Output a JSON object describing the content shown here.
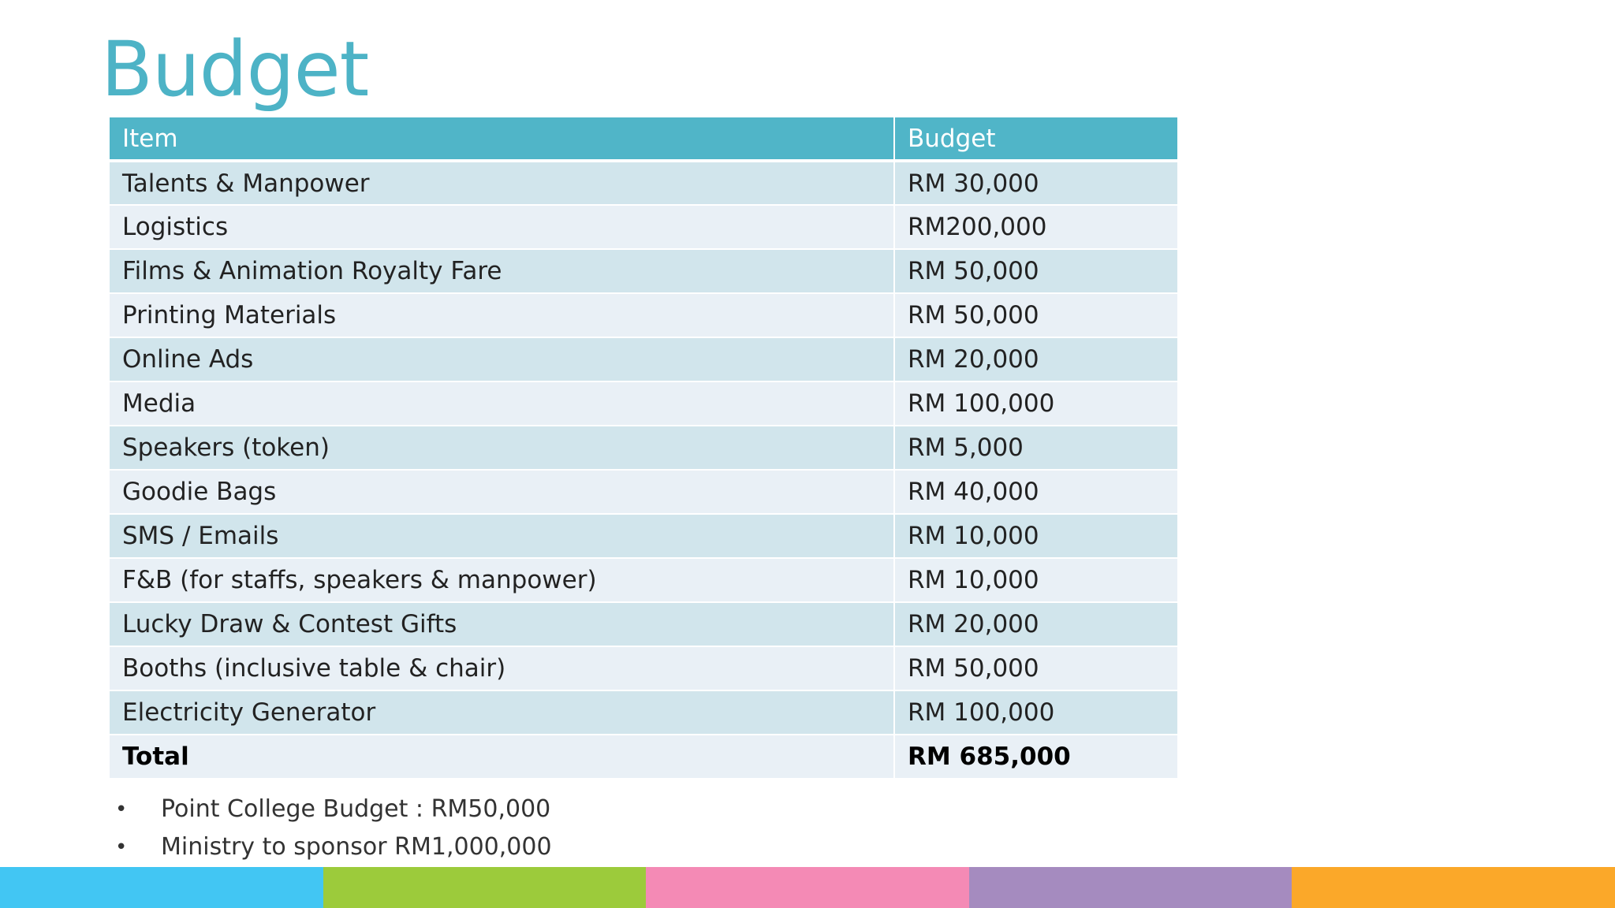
{
  "slide": {
    "title": "Budget"
  },
  "table": {
    "headers": [
      "Item",
      "Budget"
    ],
    "rows": [
      {
        "item": "Talents & Manpower",
        "budget": "RM 30,000"
      },
      {
        "item": "Logistics",
        "budget": "RM200,000"
      },
      {
        "item": "Films & Animation Royalty Fare",
        "budget": "RM 50,000"
      },
      {
        "item": "Printing Materials",
        "budget": "RM 50,000"
      },
      {
        "item": "Online Ads",
        "budget": "RM 20,000"
      },
      {
        "item": "Media",
        "budget": "RM 100,000"
      },
      {
        "item": "Speakers (token)",
        "budget": "RM 5,000"
      },
      {
        "item": "Goodie Bags",
        "budget": "RM 40,000"
      },
      {
        "item": "SMS / Emails",
        "budget": "RM 10,000"
      },
      {
        "item": "F&B (for staffs, speakers & manpower)",
        "budget": "RM 10,000"
      },
      {
        "item": "Lucky Draw & Contest Gifts",
        "budget": "RM 20,000"
      },
      {
        "item": "Booths (inclusive table & chair)",
        "budget": "RM 50,000"
      },
      {
        "item": "Electricity Generator",
        "budget": "RM 100,000"
      }
    ],
    "total": {
      "item": "Total",
      "budget": "RM 685,000"
    }
  },
  "notes": [
    "Point College Budget : RM50,000",
    "Ministry to sponsor RM1,000,000"
  ],
  "bullet_glyph": "•",
  "colors": {
    "title": "#4db3c6",
    "header_bg": "#50b5c8",
    "row_odd": "#d1e5ec",
    "row_even": "#e9f0f6",
    "bar": [
      "#42c6f3",
      "#9ccb3b",
      "#f48ab5",
      "#a58bbf",
      "#fba829"
    ]
  }
}
